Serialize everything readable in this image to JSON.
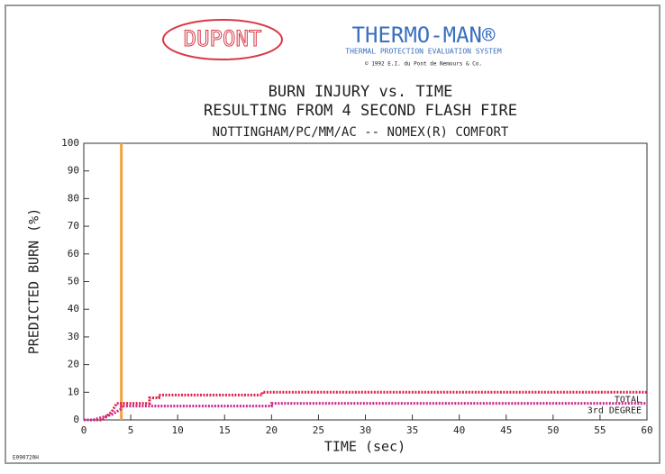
{
  "chart_data": {
    "type": "line",
    "logo": "DUPONT",
    "brand": "THERMO-MAN®",
    "brand_subtitle": "THERMAL PROTECTION EVALUATION SYSTEM",
    "copyright": "© 1992 E.I. du Pont de Nemours & Co.",
    "title": "BURN INJURY vs. TIME",
    "subtitle": "RESULTING FROM 4 SECOND FLASH FIRE",
    "subtitle2": "NOTTINGHAM/PC/MM/AC -- NOMEX(R) COMFORT",
    "x_label": "TIME (sec)",
    "y_label": "PREDICTED BURN (%)",
    "code": "E090720H",
    "xlim": [
      0,
      60
    ],
    "ylim": [
      0,
      100
    ],
    "xticks": [
      0,
      5,
      10,
      15,
      20,
      25,
      30,
      35,
      40,
      45,
      50,
      55,
      60
    ],
    "yticks": [
      0,
      10,
      20,
      30,
      40,
      50,
      60,
      70,
      80,
      90,
      100
    ],
    "vline": {
      "x": 4,
      "color": "#f5a03c"
    },
    "series": [
      {
        "name": "TOTAL",
        "color": "#e0204a",
        "x": [
          0,
          2,
          3,
          3.5,
          7,
          7,
          8,
          8,
          19,
          19,
          60
        ],
        "values": [
          0,
          0,
          3,
          6,
          6,
          8,
          8,
          9,
          9,
          10,
          10
        ]
      },
      {
        "name": "3rd DEGREE",
        "color": "#c8288c",
        "x": [
          0,
          1,
          3,
          3,
          4,
          4,
          20,
          20,
          60
        ],
        "values": [
          0,
          0,
          2,
          2,
          4,
          5,
          5,
          6,
          6
        ]
      }
    ]
  }
}
